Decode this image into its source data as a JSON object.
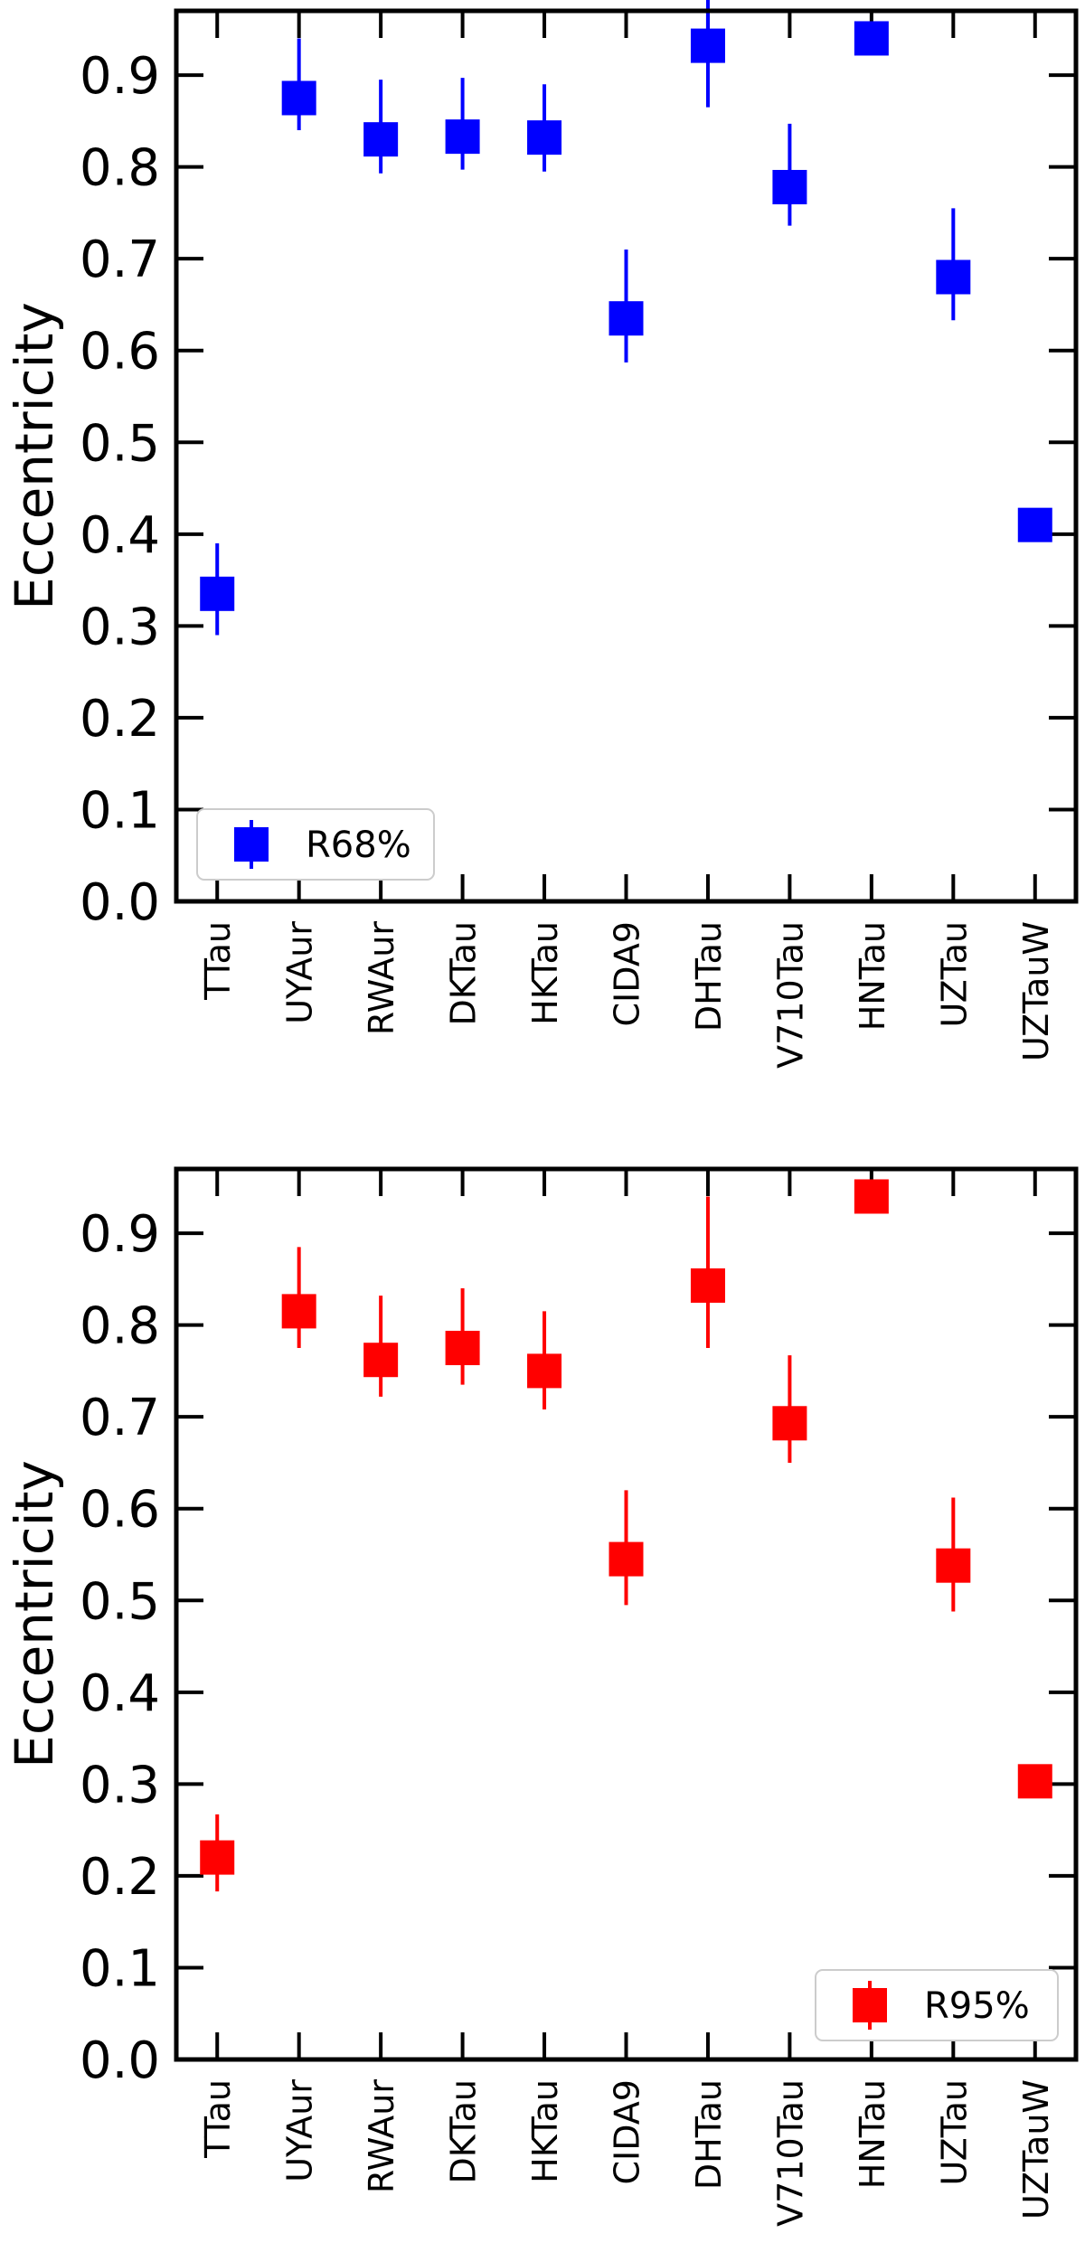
{
  "chart_data": [
    {
      "type": "scatter",
      "ylabel": "Eccentricity",
      "ylim": [
        0.0,
        0.97
      ],
      "yticks": [
        "0.0",
        "0.1",
        "0.2",
        "0.3",
        "0.4",
        "0.5",
        "0.6",
        "0.7",
        "0.8",
        "0.9"
      ],
      "categories": [
        "TTau",
        "UYAur",
        "RWAur",
        "DKTau",
        "HKTau",
        "CIDA9",
        "DHTau",
        "V710Tau",
        "HNTau",
        "UZTau",
        "UZTauW"
      ],
      "series": [
        {
          "name": "R68%",
          "color": "#0000ff",
          "marker": "square",
          "values": [
            0.335,
            0.875,
            0.83,
            0.833,
            0.832,
            0.635,
            0.932,
            0.778,
            0.94,
            0.68,
            0.41
          ],
          "err_low": [
            0.29,
            0.84,
            0.793,
            0.797,
            0.795,
            0.587,
            0.865,
            0.736,
            0.94,
            0.633,
            0.41
          ],
          "err_high": [
            0.39,
            0.94,
            0.895,
            0.897,
            0.89,
            0.71,
            0.995,
            0.847,
            0.94,
            0.755,
            0.41
          ]
        }
      ],
      "legend": {
        "position": "lower-left",
        "labels": [
          "R68%"
        ]
      }
    },
    {
      "type": "scatter",
      "ylabel": "Eccentricity",
      "ylim": [
        0.0,
        0.97
      ],
      "yticks": [
        "0.0",
        "0.1",
        "0.2",
        "0.3",
        "0.4",
        "0.5",
        "0.6",
        "0.7",
        "0.8",
        "0.9"
      ],
      "categories": [
        "TTau",
        "UYAur",
        "RWAur",
        "DKTau",
        "HKTau",
        "CIDA9",
        "DHTau",
        "V710Tau",
        "HNTau",
        "UZTau",
        "UZTauW"
      ],
      "series": [
        {
          "name": "R95%",
          "color": "#ff0000",
          "marker": "square",
          "values": [
            0.22,
            0.815,
            0.762,
            0.775,
            0.75,
            0.545,
            0.843,
            0.693,
            0.94,
            0.538,
            0.303
          ],
          "err_low": [
            0.183,
            0.775,
            0.722,
            0.735,
            0.708,
            0.495,
            0.775,
            0.65,
            0.94,
            0.488,
            0.303
          ],
          "err_high": [
            0.267,
            0.885,
            0.832,
            0.84,
            0.815,
            0.62,
            0.94,
            0.767,
            0.94,
            0.612,
            0.303
          ]
        }
      ],
      "legend": {
        "position": "lower-right",
        "labels": [
          "R95%"
        ]
      }
    }
  ]
}
